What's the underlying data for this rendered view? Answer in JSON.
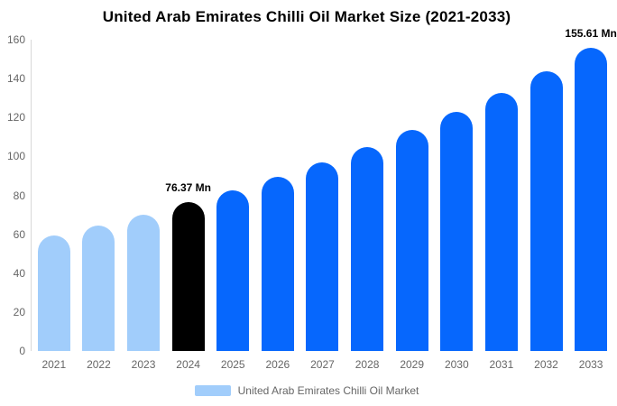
{
  "chart": {
    "title": "United Arab Emirates Chilli Oil Market Size (2021-2033)"
  },
  "chart_data": {
    "type": "bar",
    "title": "United Arab Emirates Chilli Oil Market Size (2021-2033)",
    "unit": "Mn",
    "categories": [
      "2021",
      "2022",
      "2023",
      "2024",
      "2025",
      "2026",
      "2027",
      "2028",
      "2029",
      "2030",
      "2031",
      "2032",
      "2033"
    ],
    "values": [
      59.3,
      64.5,
      70.2,
      76.37,
      82.66,
      89.46,
      96.82,
      104.79,
      113.41,
      122.75,
      132.85,
      143.79,
      155.61
    ],
    "bar_types": [
      "historical",
      "historical",
      "historical",
      "base",
      "forecast",
      "forecast",
      "forecast",
      "forecast",
      "forecast",
      "forecast",
      "forecast",
      "forecast",
      "forecast"
    ],
    "annotations": {
      "2024": "76.37 Mn",
      "2033": "155.61 Mn"
    },
    "ylim": [
      0,
      160
    ],
    "yticks": [
      0,
      20,
      40,
      60,
      80,
      100,
      120,
      140,
      160
    ],
    "grid": false,
    "legend_position": "bottom",
    "colors": {
      "historical": "#a1cdfb",
      "base": "#000000",
      "forecast": "#0667fd",
      "axis_text": "#666666",
      "axis_line": "#d8d8d8",
      "annotation_text": "#000000"
    },
    "legend": {
      "label": "United Arab Emirates Chilli Oil Market",
      "swatch_color": "#a1cdfb"
    }
  }
}
